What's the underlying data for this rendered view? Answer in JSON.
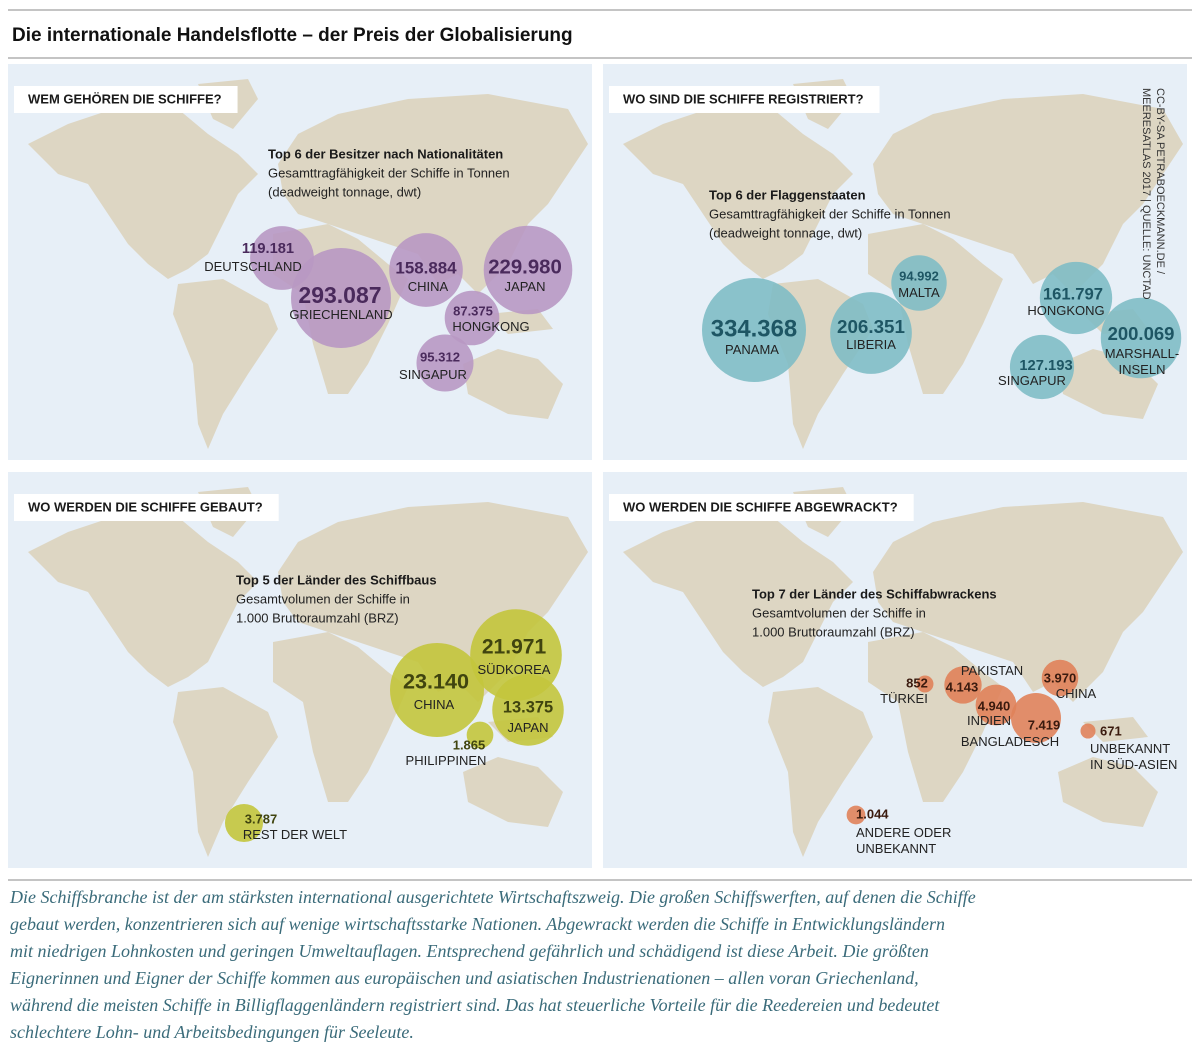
{
  "title": "Die internationale Handelsflotte – der Preis der Globalisierung",
  "credit": [
    "CC-BY-SA PETRABOECKMANN.DE /",
    "MEERESATLAS 2017 | QUELLE: UNCTAD"
  ],
  "chart_data": [
    {
      "type": "bubble-map",
      "title": "WEM GEHÖREN DIE SCHIFFE?",
      "subtitle": "Top 6 der Besitzer nach Nationalitäten",
      "note": [
        "Gesamttragfähigkeit der Schiffe in Tonnen",
        "(deadweight tonnage, dwt)"
      ],
      "color": "#b898c3",
      "categories": [
        "DEUTSCHLAND",
        "GRIECHENLAND",
        "CHINA",
        "JAPAN",
        "HONGKONG",
        "SINGAPUR"
      ],
      "values": [
        119181,
        293087,
        158884,
        229980,
        87375,
        95312
      ],
      "value_labels": [
        "119.181",
        "293.087",
        "158.884",
        "229.980",
        "87.375",
        "95.312"
      ]
    },
    {
      "type": "bubble-map",
      "title": "WO SIND DIE SCHIFFE REGISTRIERT?",
      "subtitle": "Top 6 der Flaggenstaaten",
      "note": [
        "Gesamttragfähigkeit der Schiffe in Tonnen",
        "(deadweight tonnage, dwt)"
      ],
      "color": "#80bcc5",
      "categories": [
        "PANAMA",
        "LIBERIA",
        "MALTA",
        "HONGKONG",
        "SINGAPUR",
        "MARSHALL-\nINSELN"
      ],
      "values": [
        334368,
        206351,
        94992,
        161797,
        127193,
        200069
      ],
      "value_labels": [
        "334.368",
        "206.351",
        "94.992",
        "161.797",
        "127.193",
        "200.069"
      ]
    },
    {
      "type": "bubble-map",
      "title": "WO WERDEN DIE SCHIFFE GEBAUT?",
      "subtitle": "Top 5 der Länder des Schiffbaus",
      "note": [
        "Gesamtvolumen der Schiffe in",
        "1.000 Bruttoraumzahl (BRZ)"
      ],
      "color": "#c3c53c",
      "categories": [
        "CHINA",
        "SÜDKOREA",
        "JAPAN",
        "PHILIPPINEN",
        "REST DER WELT"
      ],
      "values": [
        23140,
        21971,
        13375,
        1865,
        3787
      ],
      "value_labels": [
        "23.140",
        "21.971",
        "13.375",
        "1.865",
        "3.787"
      ]
    },
    {
      "type": "bubble-map",
      "title": "WO WERDEN DIE SCHIFFE ABGEWRACKT?",
      "subtitle": "Top 7 der Länder des Schiffabwrackens",
      "note": [
        "Gesamtvolumen der Schiffe in",
        "1.000 Bruttoraumzahl (BRZ)"
      ],
      "color": "#e0825a",
      "categories": [
        "TÜRKEI",
        "PAKISTAN",
        "INDIEN",
        "BANGLADESCH",
        "CHINA",
        "UNBEKANNT\nIN SÜD-ASIEN",
        "ANDERE ODER\nUNBEKANNT"
      ],
      "values": [
        852,
        4143,
        4940,
        7419,
        3970,
        671,
        1044
      ],
      "value_labels": [
        "852",
        "4.143",
        "4.940",
        "7.419",
        "3.970",
        "671",
        "1.044"
      ]
    }
  ],
  "caption": [
    "Die Schiffsbranche ist der am stärksten international ausgerichtete Wirtschaftszweig. Die großen Schiffswerften, auf denen die Schiffe",
    "gebaut werden, konzentrieren sich auf wenige wirtschaftsstarke Nationen. Abgewrackt werden die Schiffe in Entwicklungsländern",
    "mit niedrigen Lohnkosten und geringen Umweltauflagen. Entsprechend gefährlich und schädigend ist diese Arbeit. Die größten",
    "Eignerinnen und Eigner der Schiffe kommen aus europäischen und asiatischen Industrienationen – allen voran Griechenland,",
    "während die meisten Schiffe in Billigflaggenländern registriert sind. Das hat steuerliche Vorteile für die Reedereien und bedeutet",
    "schlechtere Lohn- und Arbeitsbedingungen für Seeleute."
  ]
}
